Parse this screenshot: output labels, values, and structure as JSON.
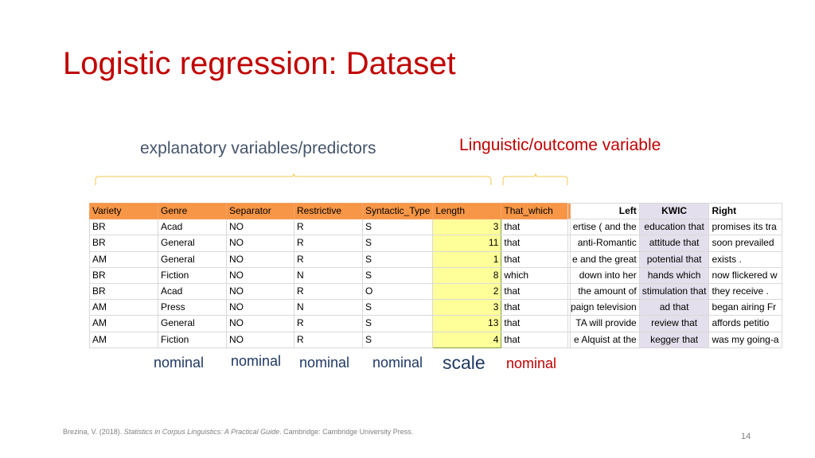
{
  "slide": {
    "title": "Logistic regression: Dataset",
    "explanatory_label": "explanatory  variables/predictors",
    "outcome_label": "Linguistic/outcome variable",
    "page_number": "14"
  },
  "table": {
    "headers": [
      "Variety",
      "Genre",
      "Separator",
      "Restrictive",
      "Syntactic_Type",
      "Length",
      "That_which"
    ],
    "rows": [
      [
        "BR",
        "Acad",
        "NO",
        "R",
        "S",
        "3",
        "that"
      ],
      [
        "BR",
        "General",
        "NO",
        "R",
        "S",
        "11",
        "that"
      ],
      [
        "AM",
        "General",
        "NO",
        "R",
        "S",
        "1",
        "that"
      ],
      [
        "BR",
        "Fiction",
        "NO",
        "N",
        "S",
        "8",
        "which"
      ],
      [
        "BR",
        "Acad",
        "NO",
        "R",
        "O",
        "2",
        "that"
      ],
      [
        "AM",
        "Press",
        "NO",
        "N",
        "S",
        "3",
        "that"
      ],
      [
        "AM",
        "General",
        "NO",
        "R",
        "S",
        "13",
        "that"
      ],
      [
        "AM",
        "Fiction",
        "NO",
        "R",
        "S",
        "4",
        "that"
      ]
    ]
  },
  "kwic": {
    "headers": [
      "Left",
      "KWIC",
      "Right"
    ],
    "rows": [
      [
        "ertise ( and the",
        "education that",
        "promises its tra"
      ],
      [
        "anti-Romantic",
        "attitude that",
        "soon prevailed"
      ],
      [
        "e and the great",
        "potential that",
        "exists ."
      ],
      [
        "down into her",
        "hands which",
        "now flickered w"
      ],
      [
        "the amount of",
        "stimulation that",
        "they receive ."
      ],
      [
        "paign television",
        "ad that",
        "began airing Fr"
      ],
      [
        "TA will provide",
        "review that",
        "affords petitio"
      ],
      [
        "e Alquist at the",
        "kegger that",
        "was my going-a"
      ]
    ]
  },
  "measurement_labels": [
    "nominal",
    "nominal",
    "nominal",
    "nominal",
    "scale",
    "nominal"
  ],
  "footer": {
    "author": "Brezina, V. (2018). ",
    "book": "Statistics in Corpus Linguistics: A Practical Guide",
    "publisher": ". Cambridge: Cambridge University Press."
  }
}
